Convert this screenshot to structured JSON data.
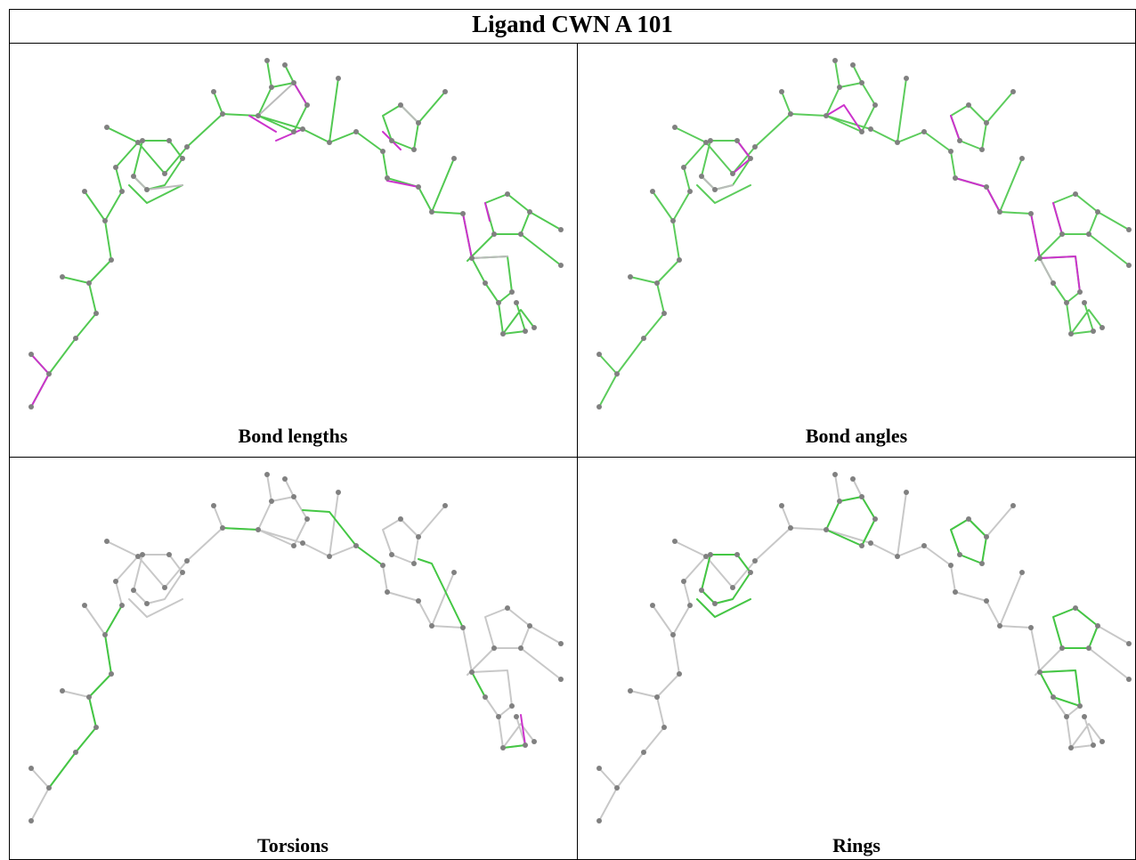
{
  "header": {
    "title": "Ligand CWN A 101"
  },
  "panels": [
    {
      "label": "Bond lengths"
    },
    {
      "label": "Bond angles"
    },
    {
      "label": "Torsions"
    },
    {
      "label": "Rings"
    }
  ]
}
